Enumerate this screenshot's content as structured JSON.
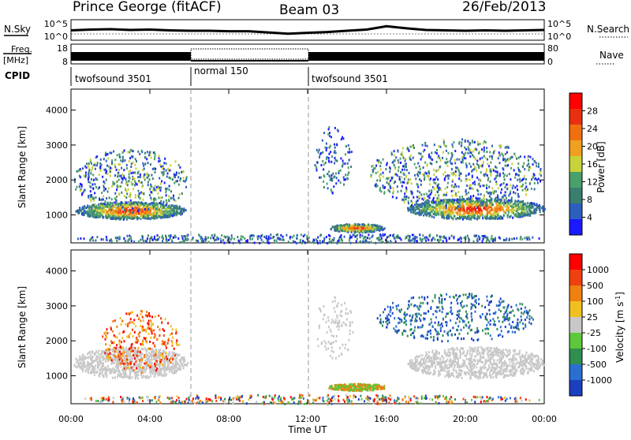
{
  "header": {
    "title": "Prince George (fitACF)",
    "beam": "Beam 03",
    "date": "26/Feb/2013"
  },
  "left_labels": {
    "nsky": "N.Sky",
    "freq": "Freq.",
    "mhz": "[MHz]",
    "cpid": "CPID"
  },
  "right_labels": {
    "nsearch": "N.Search",
    "nave": "Nave"
  },
  "cpid_segments": [
    {
      "label": "twofsound 3501",
      "start_h": 0,
      "end_h": 6
    },
    {
      "label": "normal 150",
      "start_h": 6,
      "end_h": 12
    },
    {
      "label": "twofsound 3501",
      "start_h": 12,
      "end_h": 24
    }
  ],
  "colors": {
    "power_scale": [
      "#1a1aff",
      "#2d5fbf",
      "#3a7f6e",
      "#4aa06a",
      "#c8d23a",
      "#f0a020",
      "#f07010",
      "#e83010",
      "#ff0000"
    ],
    "velocity_scale": [
      "#1a3fbf",
      "#2a6fd0",
      "#2f8f4f",
      "#5cc83a",
      "#c8c8c8",
      "#f0c020",
      "#f08010",
      "#f04010",
      "#ff0000"
    ],
    "ground_scatter": "#c8c8c8"
  },
  "chart_data": [
    {
      "type": "line",
      "name": "noise",
      "ylabels": {
        "left": [
          "10^5",
          "10^0"
        ],
        "right": [
          "10^5",
          "10^0"
        ]
      },
      "x_hours": [
        0,
        1,
        2,
        3,
        4,
        5,
        6,
        7,
        8,
        9,
        10,
        11,
        12,
        13,
        14,
        15,
        16,
        17,
        18,
        19,
        20,
        21,
        22,
        23,
        24
      ],
      "nsky_log": [
        2.4,
        2.6,
        2.7,
        2.5,
        2.6,
        2.4,
        2.3,
        2.3,
        2.2,
        2.2,
        1.9,
        1.6,
        1.8,
        2.0,
        2.3,
        2.6,
        3.4,
        2.9,
        2.5,
        2.4,
        2.3,
        2.4,
        2.3,
        2.4,
        2.5
      ]
    },
    {
      "type": "line",
      "name": "frequency",
      "ylabels": {
        "left": [
          "18",
          "8"
        ],
        "right": [
          "80",
          "0"
        ]
      },
      "xlim": [
        0,
        24
      ]
    },
    {
      "type": "heatmap",
      "name": "power",
      "ylabel": "Slant Range [km]",
      "yticks": [
        1000,
        2000,
        3000,
        4000
      ],
      "ylim": [
        200,
        4600
      ],
      "colorbar_label": "Power [dB]",
      "colorbar_ticks": [
        "4",
        "8",
        "12",
        "16",
        "20",
        "24",
        "28"
      ]
    },
    {
      "type": "heatmap",
      "name": "velocity",
      "ylabel": "Slant Range [km]",
      "yticks": [
        1000,
        2000,
        3000,
        4000
      ],
      "ylim": [
        200,
        4600
      ],
      "colorbar_label": "Velocity [m s",
      "colorbar_label_sup": "-1",
      "colorbar_label_end": "]",
      "colorbar_ticks": [
        "1000",
        "500",
        "100",
        "25",
        "-25",
        "-100",
        "-500",
        "-1000"
      ]
    }
  ],
  "x_axis": {
    "ticks": [
      "00:00",
      "04:00",
      "08:00",
      "12:00",
      "16:00",
      "20:00",
      "00:00"
    ],
    "label": "Time UT"
  }
}
